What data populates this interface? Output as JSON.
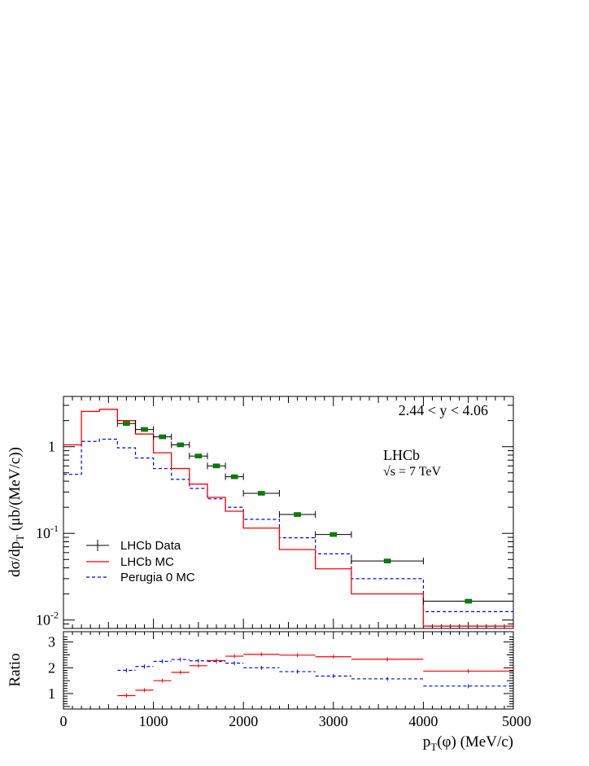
{
  "chart_data": [
    {
      "type": "line",
      "panel": "main",
      "scale": "log",
      "ylabel": "dσ/dp_T (μb/(MeV/c))",
      "ylabel_parts": {
        "main": "dσ/dp",
        "sub": "T",
        "rest": " (μb/(MeV/c))"
      },
      "xlim": [
        0,
        5000
      ],
      "ylim": [
        0.008,
        3.8
      ],
      "y_ticks": [
        {
          "value": 1,
          "label": "1"
        },
        {
          "value": 0.1,
          "label": "10",
          "exp": "-1"
        },
        {
          "value": 0.01,
          "label": "10",
          "exp": "-2"
        }
      ],
      "annotations": {
        "range": "2.44 < y < 4.06",
        "experiment": "LHCb",
        "energy": "√s = 7 TeV"
      },
      "legend_position": "bottom-left",
      "legend": [
        {
          "key": "data",
          "label": "LHCb Data"
        },
        {
          "key": "lhcb_mc",
          "label": "LHCb MC"
        },
        {
          "key": "perugia",
          "label": "Perugia 0 MC"
        }
      ],
      "colors": {
        "data": "#000000",
        "data_marker": "#008000",
        "lhcb_mc": "#ff0000",
        "perugia": "#0000ff"
      },
      "series": [
        {
          "name": "LHCb Data",
          "kind": "points",
          "points": [
            {
              "xlo": 600,
              "xhi": 800,
              "y": 1.85
            },
            {
              "xlo": 800,
              "xhi": 1000,
              "y": 1.58
            },
            {
              "xlo": 1000,
              "xhi": 1200,
              "y": 1.3
            },
            {
              "xlo": 1200,
              "xhi": 1400,
              "y": 1.05
            },
            {
              "xlo": 1400,
              "xhi": 1600,
              "y": 0.78
            },
            {
              "xlo": 1600,
              "xhi": 1800,
              "y": 0.6
            },
            {
              "xlo": 1800,
              "xhi": 2000,
              "y": 0.45
            },
            {
              "xlo": 2000,
              "xhi": 2400,
              "y": 0.29
            },
            {
              "xlo": 2400,
              "xhi": 2800,
              "y": 0.165
            },
            {
              "xlo": 2800,
              "xhi": 3200,
              "y": 0.097
            },
            {
              "xlo": 3200,
              "xhi": 4000,
              "y": 0.048
            },
            {
              "xlo": 4000,
              "xhi": 5000,
              "y": 0.0165
            }
          ]
        },
        {
          "name": "LHCb MC",
          "kind": "step",
          "edges": [
            0,
            200,
            400,
            600,
            800,
            1000,
            1200,
            1400,
            1600,
            1800,
            2000,
            2400,
            2800,
            3200,
            4000,
            5000
          ],
          "values": [
            1.05,
            2.55,
            2.7,
            2.0,
            1.4,
            0.85,
            0.56,
            0.37,
            0.26,
            0.18,
            0.115,
            0.065,
            0.039,
            0.02,
            0.0085
          ]
        },
        {
          "name": "Perugia 0 MC",
          "kind": "step",
          "edges": [
            0,
            200,
            400,
            600,
            800,
            1000,
            1200,
            1400,
            1600,
            1800,
            2000,
            2400,
            2800,
            3200,
            4000,
            5000
          ],
          "values": [
            0.48,
            1.15,
            1.22,
            0.97,
            0.74,
            0.56,
            0.42,
            0.33,
            0.25,
            0.2,
            0.145,
            0.089,
            0.058,
            0.03,
            0.0125
          ]
        }
      ]
    },
    {
      "type": "line",
      "panel": "ratio",
      "ylabel": "Ratio",
      "xlabel": "p_T(φ)  (MeV/c)",
      "xlabel_parts": {
        "main": "p",
        "sub": "T",
        "rest": "(φ)  (MeV/c)"
      },
      "xlim": [
        0,
        5000
      ],
      "ylim": [
        0.4,
        3.4
      ],
      "x_ticks": [
        {
          "value": 0,
          "label": "0"
        },
        {
          "value": 1000,
          "label": "1000"
        },
        {
          "value": 2000,
          "label": "2000"
        },
        {
          "value": 3000,
          "label": "3000"
        },
        {
          "value": 4000,
          "label": "4000"
        },
        {
          "value": 5000,
          "label": "5000"
        }
      ],
      "y_ticks": [
        {
          "value": 1,
          "label": "1"
        },
        {
          "value": 2,
          "label": "2"
        },
        {
          "value": 3,
          "label": "3"
        }
      ],
      "series": [
        {
          "name": "LHCb MC",
          "edges": [
            600,
            800,
            1000,
            1200,
            1400,
            1600,
            1800,
            2000,
            2400,
            2800,
            3200,
            4000,
            5000
          ],
          "values": [
            0.92,
            1.13,
            1.5,
            1.82,
            2.08,
            2.28,
            2.45,
            2.52,
            2.49,
            2.43,
            2.33,
            1.87
          ]
        },
        {
          "name": "Perugia 0 MC",
          "edges": [
            600,
            800,
            1000,
            1200,
            1400,
            1600,
            1800,
            2000,
            2400,
            2800,
            3200,
            4000,
            5000
          ],
          "values": [
            1.9,
            2.05,
            2.25,
            2.32,
            2.27,
            2.25,
            2.18,
            2.0,
            1.85,
            1.68,
            1.57,
            1.29
          ]
        }
      ]
    }
  ]
}
